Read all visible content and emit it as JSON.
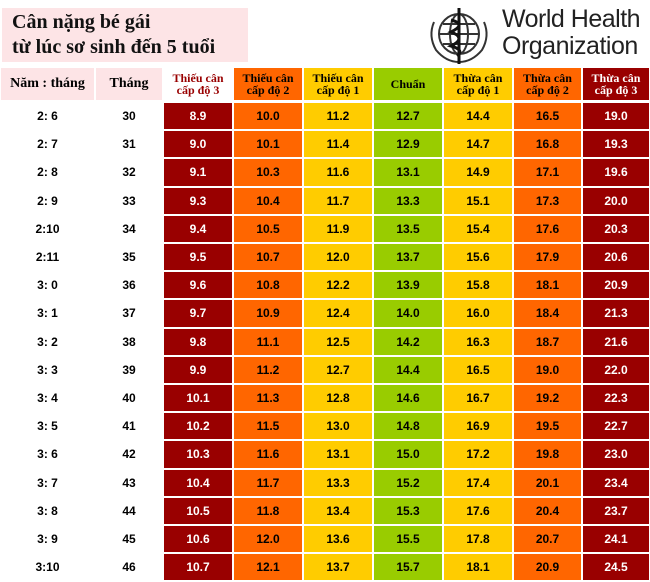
{
  "header": {
    "title": [
      "Cân nặng bé gái",
      "từ lúc sơ sinh đến 5 tuổi"
    ],
    "logo": [
      "World Health",
      "Organization"
    ]
  },
  "table": {
    "columns": [
      "Năm : tháng",
      "Tháng",
      "Thiếu cân cấp độ 3",
      "Thiếu cân cấp độ 2",
      "Thiếu cân cấp độ 1",
      "Chuẩn",
      "Thừa cân cấp độ 1",
      "Thừa cân cấp độ 2",
      "Thừa cân cấp độ 3"
    ],
    "rows": [
      [
        "2: 6",
        "30",
        "8.9",
        "10.0",
        "11.2",
        "12.7",
        "14.4",
        "16.5",
        "19.0"
      ],
      [
        "2: 7",
        "31",
        "9.0",
        "10.1",
        "11.4",
        "12.9",
        "14.7",
        "16.8",
        "19.3"
      ],
      [
        "2: 8",
        "32",
        "9.1",
        "10.3",
        "11.6",
        "13.1",
        "14.9",
        "17.1",
        "19.6"
      ],
      [
        "2: 9",
        "33",
        "9.3",
        "10.4",
        "11.7",
        "13.3",
        "15.1",
        "17.3",
        "20.0"
      ],
      [
        "2:10",
        "34",
        "9.4",
        "10.5",
        "11.9",
        "13.5",
        "15.4",
        "17.6",
        "20.3"
      ],
      [
        "2:11",
        "35",
        "9.5",
        "10.7",
        "12.0",
        "13.7",
        "15.6",
        "17.9",
        "20.6"
      ],
      [
        "3: 0",
        "36",
        "9.6",
        "10.8",
        "12.2",
        "13.9",
        "15.8",
        "18.1",
        "20.9"
      ],
      [
        "3: 1",
        "37",
        "9.7",
        "10.9",
        "12.4",
        "14.0",
        "16.0",
        "18.4",
        "21.3"
      ],
      [
        "3: 2",
        "38",
        "9.8",
        "11.1",
        "12.5",
        "14.2",
        "16.3",
        "18.7",
        "21.6"
      ],
      [
        "3: 3",
        "39",
        "9.9",
        "11.2",
        "12.7",
        "14.4",
        "16.5",
        "19.0",
        "22.0"
      ],
      [
        "3: 4",
        "40",
        "10.1",
        "11.3",
        "12.8",
        "14.6",
        "16.7",
        "19.2",
        "22.3"
      ],
      [
        "3: 5",
        "41",
        "10.2",
        "11.5",
        "13.0",
        "14.8",
        "16.9",
        "19.5",
        "22.7"
      ],
      [
        "3: 6",
        "42",
        "10.3",
        "11.6",
        "13.1",
        "15.0",
        "17.2",
        "19.8",
        "23.0"
      ],
      [
        "3: 7",
        "43",
        "10.4",
        "11.7",
        "13.3",
        "15.2",
        "17.4",
        "20.1",
        "23.4"
      ],
      [
        "3: 8",
        "44",
        "10.5",
        "11.8",
        "13.4",
        "15.3",
        "17.6",
        "20.4",
        "23.7"
      ],
      [
        "3: 9",
        "45",
        "10.6",
        "12.0",
        "13.6",
        "15.5",
        "17.8",
        "20.7",
        "24.1"
      ],
      [
        "3:10",
        "46",
        "10.7",
        "12.1",
        "13.7",
        "15.7",
        "18.1",
        "20.9",
        "24.5"
      ]
    ]
  }
}
